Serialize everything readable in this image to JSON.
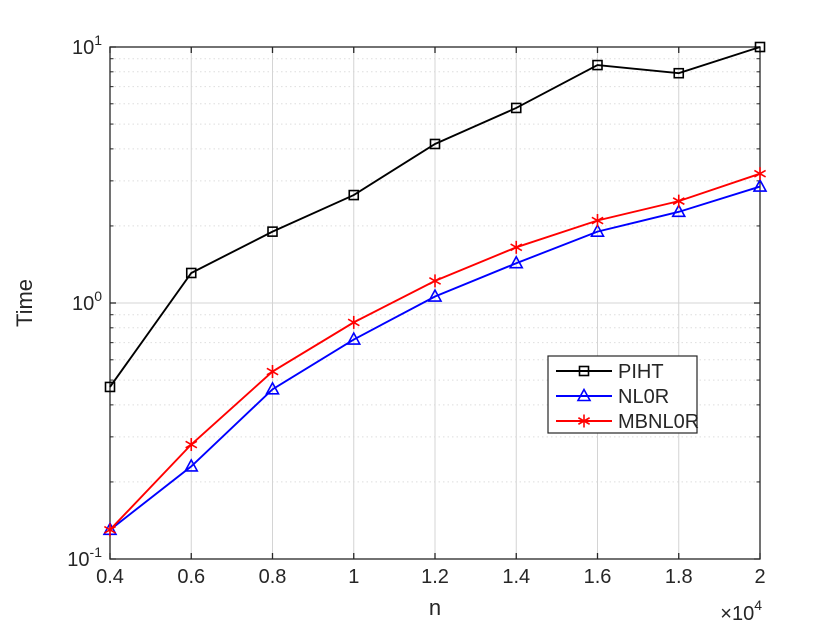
{
  "colors": {
    "background": "#ffffff",
    "frame": "#262626",
    "grid_major": "#d4d4d4",
    "grid_minor": "#dedede",
    "legend_background": "#ffffff",
    "legend_border": "#262626",
    "piht": "#000000",
    "nl0r": "#0000ff",
    "mbnl0r": "#ff0000"
  },
  "chart_data": {
    "type": "line",
    "title": "",
    "xlabel": "n",
    "ylabel": "Time",
    "grid": {
      "major": true,
      "minor": true
    },
    "legend": {
      "position": "inside-lower-right",
      "border": true
    },
    "x_axis": {
      "scale": "linear",
      "min": 0.4,
      "max": 2,
      "units_note": "values are x10^4",
      "offset": {
        "base": "×10",
        "exp": "4"
      },
      "ticks": [
        {
          "v": 0.4,
          "label": "0.4"
        },
        {
          "v": 0.6,
          "label": "0.6"
        },
        {
          "v": 0.8,
          "label": "0.8"
        },
        {
          "v": 1.0,
          "label": "1"
        },
        {
          "v": 1.2,
          "label": "1.2"
        },
        {
          "v": 1.4,
          "label": "1.4"
        },
        {
          "v": 1.6,
          "label": "1.6"
        },
        {
          "v": 1.8,
          "label": "1.8"
        },
        {
          "v": 2.0,
          "label": "2"
        }
      ]
    },
    "y_axis": {
      "scale": "log",
      "min": 0.1,
      "max": 10,
      "ticks": [
        {
          "v": 0.1,
          "base": "10",
          "exp": "-1"
        },
        {
          "v": 1,
          "base": "10",
          "exp": "0"
        },
        {
          "v": 10,
          "base": "10",
          "exp": "1"
        }
      ]
    },
    "x": [
      0.4,
      0.6,
      0.8,
      1.0,
      1.2,
      1.4,
      1.6,
      1.8,
      2.0
    ],
    "series": [
      {
        "name": "PIHT",
        "color": "#000000",
        "marker": "square",
        "values": [
          0.47,
          1.31,
          1.9,
          2.64,
          4.18,
          5.78,
          8.5,
          7.9,
          10.0
        ]
      },
      {
        "name": "NL0R",
        "color": "#0000ff",
        "marker": "triangle",
        "values": [
          0.13,
          0.23,
          0.46,
          0.72,
          1.06,
          1.43,
          1.9,
          2.27,
          2.85
        ]
      },
      {
        "name": "MBNL0R",
        "color": "#ff0000",
        "marker": "asterisk",
        "values": [
          0.13,
          0.28,
          0.54,
          0.84,
          1.22,
          1.65,
          2.1,
          2.5,
          3.2
        ]
      }
    ]
  }
}
